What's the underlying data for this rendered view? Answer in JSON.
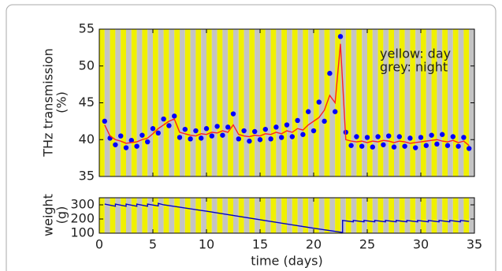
{
  "chart_data": [
    {
      "type": "combo",
      "ylabel": [
        "THz transmission",
        "(%)"
      ],
      "annotations": [
        "yellow: day",
        "grey: night"
      ],
      "stripe_colors": [
        "#f0f000",
        "#c4c4c4"
      ],
      "x": [
        0.5,
        1,
        1.5,
        2,
        2.5,
        3,
        3.5,
        4,
        4.5,
        5,
        5.5,
        6,
        6.5,
        7,
        7.5,
        8,
        8.5,
        9,
        9.5,
        10,
        10.5,
        11,
        11.5,
        12,
        12.5,
        13,
        13.5,
        14,
        14.5,
        15,
        15.5,
        16,
        16.5,
        17,
        17.5,
        18,
        18.5,
        19,
        19.5,
        20,
        20.5,
        21,
        21.5,
        22,
        22.5,
        23,
        23.5,
        24,
        24.5,
        25,
        25.5,
        26,
        26.5,
        27,
        27.5,
        28,
        28.5,
        29,
        29.5,
        30,
        30.5,
        31,
        31.5,
        32,
        32.5,
        33,
        33.5,
        34,
        34.5
      ],
      "series": [
        {
          "type": "scatter",
          "color": "#0000ff",
          "values": [
            42.5,
            40.2,
            39.3,
            40.5,
            38.9,
            39.9,
            39.1,
            40.6,
            39.7,
            41.5,
            40.9,
            42.8,
            41.9,
            43.2,
            40.3,
            41.4,
            40.1,
            41.2,
            40.2,
            41.5,
            40.5,
            41.8,
            40.6,
            41.7,
            43.5,
            40.1,
            41.2,
            39.8,
            41.1,
            40.0,
            41.4,
            40.1,
            41.7,
            40.3,
            42.0,
            40.4,
            42.6,
            40.7,
            43.8,
            41.2,
            45.1,
            42.5,
            49.0,
            43.8,
            54.0,
            41.0,
            39.2,
            40.4,
            39.1,
            40.3,
            39.0,
            40.4,
            39.3,
            40.5,
            39.0,
            40.4,
            39.1,
            40.2,
            38.9,
            40.3,
            39.2,
            40.6,
            39.4,
            40.7,
            39.2,
            40.4,
            39.1,
            40.3,
            38.8
          ]
        },
        {
          "type": "line",
          "color": "#ff2020",
          "values": [
            42,
            40.5,
            40,
            39.8,
            39.5,
            39.6,
            39.7,
            40,
            40.2,
            40.8,
            41.5,
            42,
            42.5,
            42.8,
            41,
            40.8,
            40.6,
            40.5,
            40.8,
            40.7,
            41,
            40.9,
            41.2,
            41,
            42,
            40.7,
            40.5,
            40.4,
            40.6,
            40.5,
            40.8,
            40.7,
            41,
            40.8,
            41.2,
            41,
            41.5,
            41.3,
            42,
            42.5,
            43,
            44,
            46,
            45,
            53,
            40,
            39.8,
            39.7,
            39.8,
            39.6,
            39.8,
            39.7,
            39.9,
            39.8,
            39.6,
            39.8,
            39.7,
            39.5,
            39.6,
            39.7,
            39.8,
            39.9,
            40,
            39.8,
            39.7,
            39.9,
            39.6,
            39.8,
            39.2
          ]
        }
      ],
      "xlim": [
        0,
        35
      ],
      "xticks": [
        0,
        5,
        10,
        15,
        20,
        25,
        30,
        35
      ],
      "ylim": [
        35,
        55
      ],
      "yticks": [
        35,
        40,
        45,
        50,
        55
      ]
    },
    {
      "type": "line",
      "xlabel": "time (days)",
      "ylabel": [
        "weight",
        "(g)"
      ],
      "stripe_colors": [
        "#f0f000",
        "#c4c4c4"
      ],
      "x": [
        0.5,
        1.5,
        1.5,
        2.5,
        2.5,
        3.5,
        3.5,
        4.5,
        4.5,
        5.5,
        5.5,
        6,
        10,
        15,
        20,
        22.7,
        22.7,
        23.7,
        23.7,
        24.7,
        24.7,
        25.7,
        25.7,
        26.7,
        26.7,
        27.7,
        27.7,
        28.7,
        28.7,
        29.7,
        29.7,
        30.7,
        30.7,
        31.7,
        31.7,
        32.7,
        32.7,
        33.7,
        33.7,
        34.5
      ],
      "series": [
        {
          "type": "line",
          "color": "#0000cc",
          "values": [
            305,
            290,
            305,
            290,
            305,
            290,
            305,
            290,
            305,
            292,
            310,
            300,
            255,
            195,
            135,
            105,
            190,
            180,
            190,
            180,
            190,
            180,
            190,
            180,
            190,
            180,
            190,
            180,
            190,
            180,
            190,
            180,
            190,
            180,
            190,
            180,
            190,
            180,
            190,
            183
          ]
        }
      ],
      "xlim": [
        0,
        35
      ],
      "xticks": [
        0,
        5,
        10,
        15,
        20,
        25,
        30,
        35
      ],
      "xtick_labels": true,
      "ylim": [
        100,
        350
      ],
      "yticks": [
        100,
        200,
        300
      ]
    }
  ]
}
